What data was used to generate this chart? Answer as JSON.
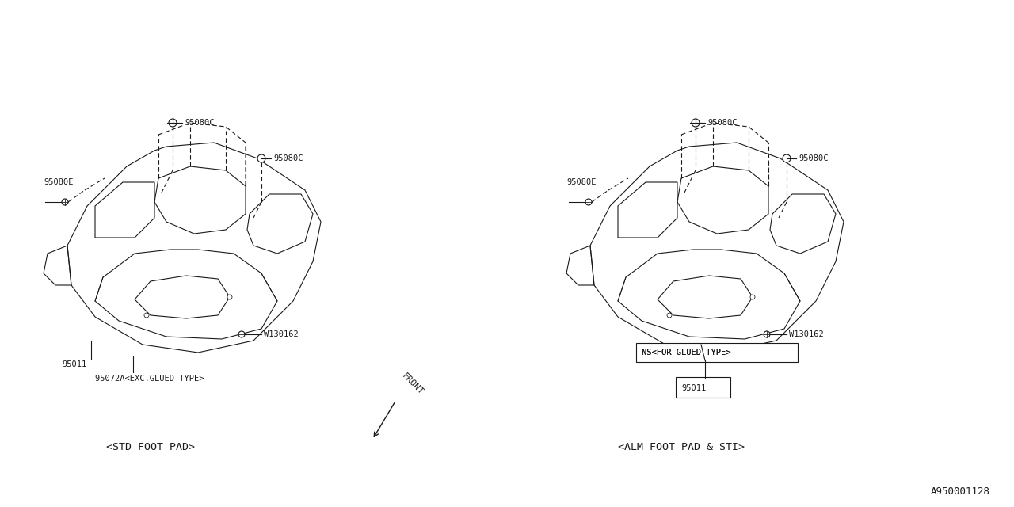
{
  "bg_color": "#ffffff",
  "line_color": "#1a1a1a",
  "fig_width": 12.8,
  "fig_height": 6.4,
  "title_bottom_right": "A950001128",
  "left_label": "<STD FOOT PAD>",
  "right_label": "<ALM FOOT PAD & STI>",
  "front_label": "FRONT"
}
